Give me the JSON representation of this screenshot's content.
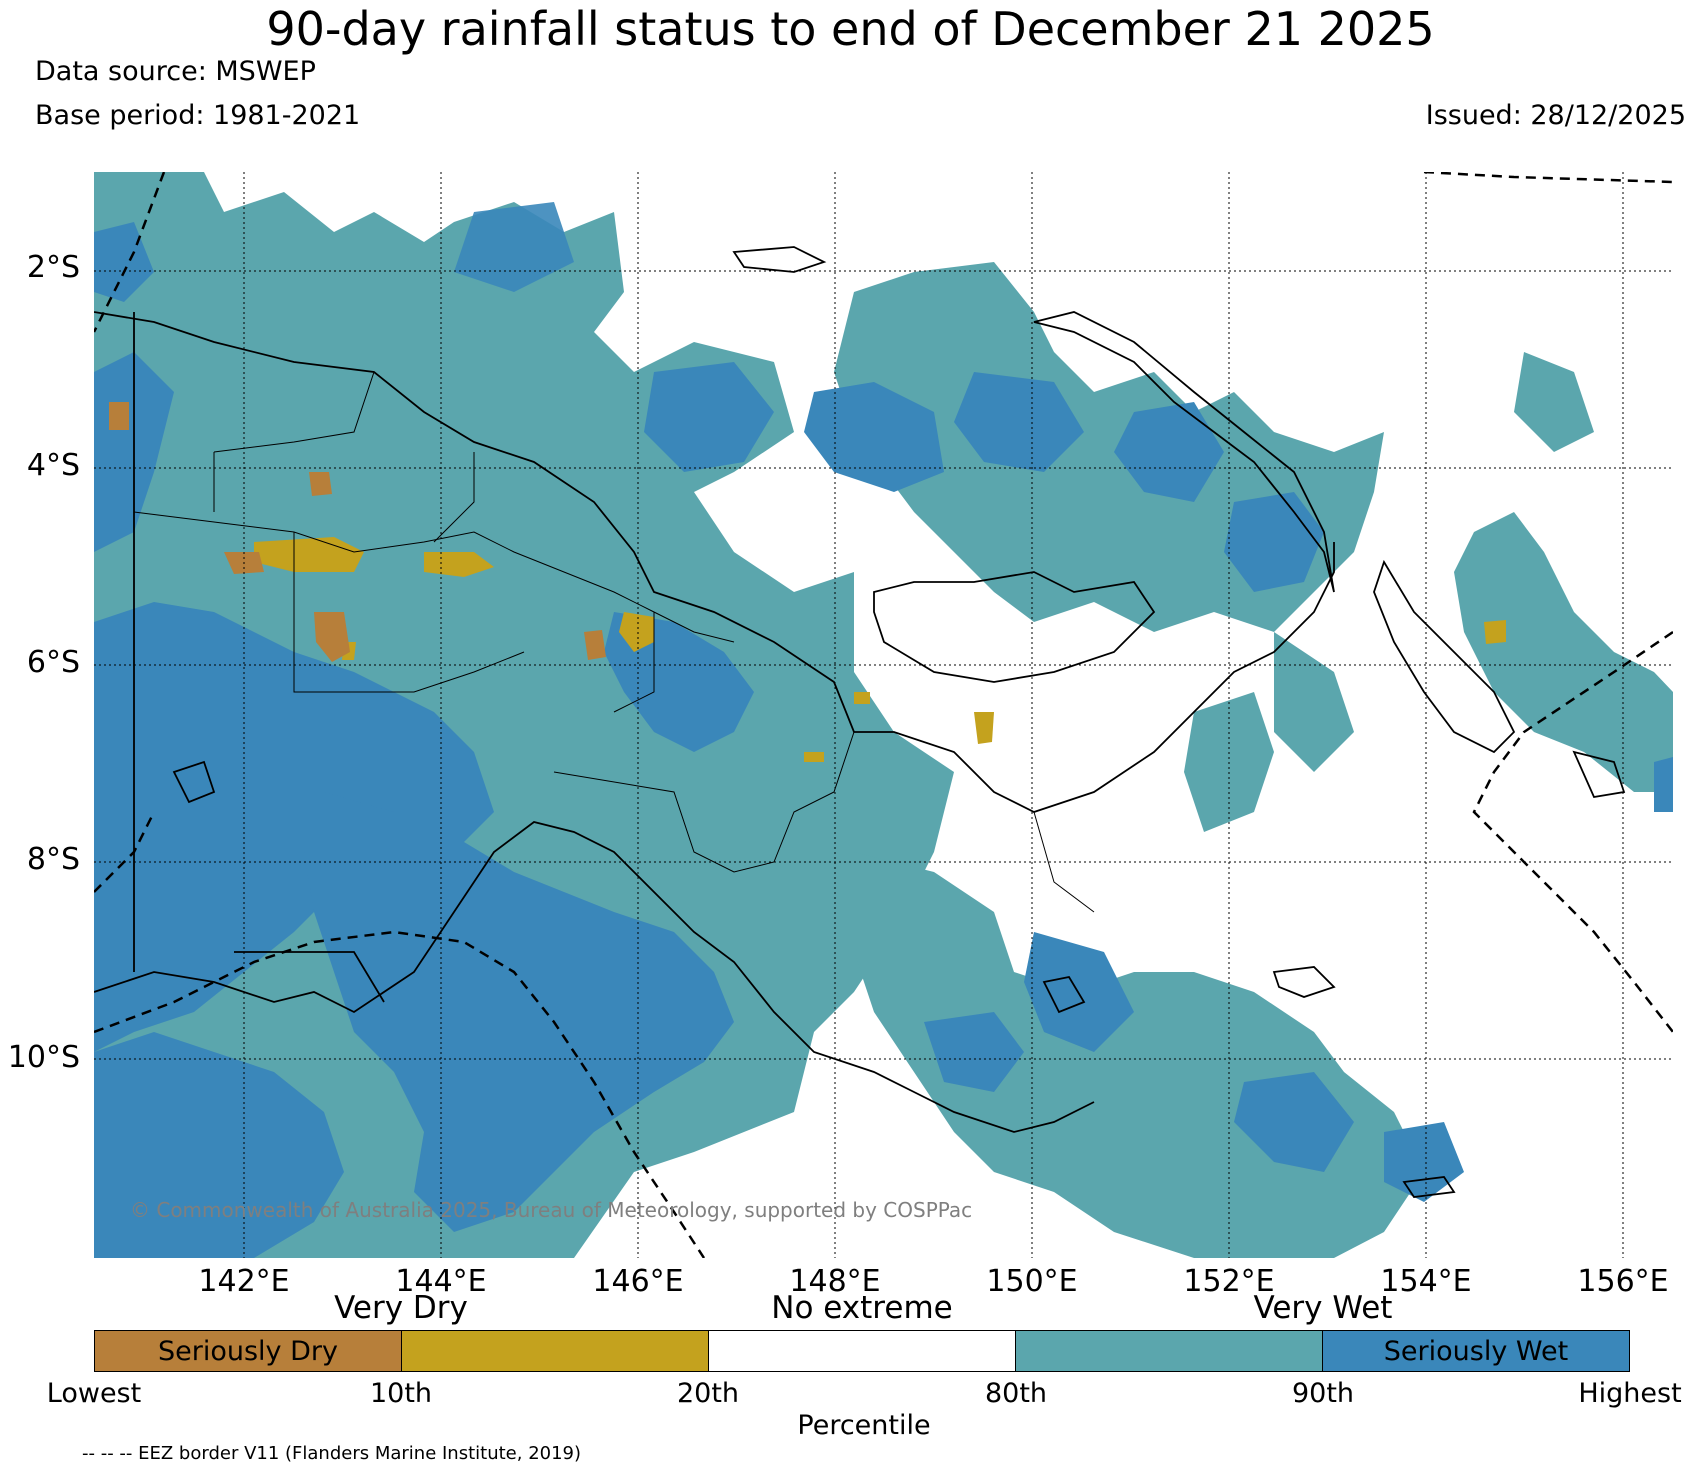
{
  "header": {
    "title": "90-day rainfall status to end of December 21 2025",
    "data_source": "Data source: MSWEP",
    "base_period": "Base period: 1981-2021",
    "issued": "Issued: 28/12/2025"
  },
  "map": {
    "lat_labels": [
      "2°S",
      "4°S",
      "6°S",
      "8°S",
      "10°S"
    ],
    "lon_labels": [
      "142°E",
      "144°E",
      "146°E",
      "148°E",
      "150°E",
      "152°E",
      "154°E",
      "156°E"
    ],
    "copyright": "© Commonwealth of Australia 2025, Bureau of Meteorology, supported by COSPPac",
    "colors": {
      "seriously_wet": "#3a87ba",
      "very_wet": "#5ba6ad",
      "very_dry": "#c4a21e",
      "seriously_dry": "#b77f3a",
      "no_extreme": "#ffffff"
    }
  },
  "legend": {
    "categories": [
      "Very Dry",
      "No extreme",
      "Very Wet"
    ],
    "segments": [
      {
        "label": "Seriously Dry",
        "color": "#b77f3a"
      },
      {
        "label": "",
        "color": "#c4a21e"
      },
      {
        "label": "",
        "color": "#ffffff"
      },
      {
        "label": "",
        "color": "#5ba6ad"
      },
      {
        "label": "Seriously Wet",
        "color": "#3a87ba"
      }
    ],
    "ticks": [
      "Lowest",
      "10th",
      "20th",
      "80th",
      "90th",
      "Highest"
    ],
    "axis_title": "Percentile",
    "footnote": "-- -- -- EEZ border V11 (Flanders Marine Institute, 2019)"
  }
}
